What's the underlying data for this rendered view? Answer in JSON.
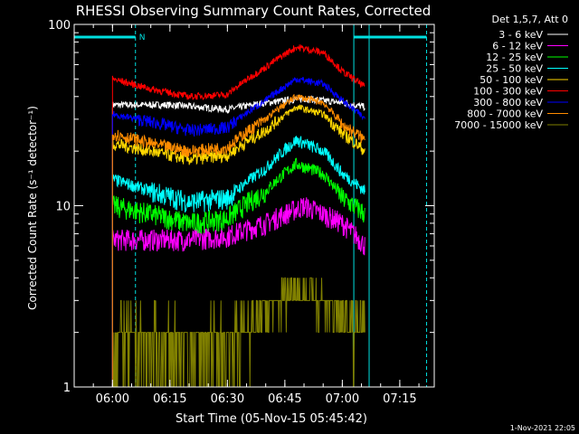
{
  "chart_data": {
    "type": "line",
    "title": "RHESSI Observing Summary Count Rates, Corrected",
    "xlabel": "Start Time (05-Nov-15 05:45:42)",
    "ylabel": "Corrected Count Rate (s⁻¹ detector⁻¹)",
    "x_start": "05:45:42",
    "xlim": [
      "05:50",
      "07:24"
    ],
    "xticks": [
      "06:00",
      "06:15",
      "06:30",
      "06:45",
      "07:00",
      "07:15"
    ],
    "yscale": "log",
    "ylim": [
      1,
      100
    ],
    "yticks": [
      "1",
      "10",
      "100"
    ],
    "legend_title": "Det 1,5,7, Att 0",
    "legend_position": "top-right",
    "timestamp": "1-Nov-2021 22:05",
    "data_interval": [
      "06:00",
      "07:06"
    ],
    "annotations": {
      "night_marker": "N",
      "bars": [
        {
          "from": "05:50",
          "to": "06:06",
          "y": 85,
          "color": "#00e0e0"
        },
        {
          "from": "07:03",
          "to": "07:22",
          "y": 85,
          "color": "#00e0e0"
        }
      ],
      "dashed_verticals": [
        "06:06",
        "07:22"
      ],
      "solid_verticals": [
        "07:03",
        "07:07"
      ]
    },
    "series": [
      {
        "name": "3 - 6 keV",
        "color": "#ffffff",
        "points": [
          [
            "06:00",
            36
          ],
          [
            "06:15",
            36
          ],
          [
            "06:30",
            34
          ],
          [
            "06:40",
            37
          ],
          [
            "06:50",
            39
          ],
          [
            "07:00",
            37
          ],
          [
            "07:06",
            35
          ]
        ]
      },
      {
        "name": "6 - 12 keV",
        "color": "#ff00ff",
        "points": [
          [
            "06:00",
            6.5
          ],
          [
            "06:10",
            6.5
          ],
          [
            "06:20",
            6.5
          ],
          [
            "06:30",
            6.8
          ],
          [
            "06:40",
            8
          ],
          [
            "06:50",
            10
          ],
          [
            "07:00",
            8
          ],
          [
            "07:06",
            6
          ]
        ]
      },
      {
        "name": "12 - 25 keV",
        "color": "#00ff00",
        "points": [
          [
            "06:00",
            10
          ],
          [
            "06:10",
            9
          ],
          [
            "06:20",
            8
          ],
          [
            "06:30",
            8.5
          ],
          [
            "06:40",
            12
          ],
          [
            "06:48",
            17
          ],
          [
            "06:55",
            15
          ],
          [
            "07:00",
            11
          ],
          [
            "07:06",
            9
          ]
        ]
      },
      {
        "name": "25 - 50 keV",
        "color": "#00ffff",
        "points": [
          [
            "06:00",
            14
          ],
          [
            "06:10",
            12
          ],
          [
            "06:20",
            10.5
          ],
          [
            "06:30",
            11
          ],
          [
            "06:40",
            16
          ],
          [
            "06:48",
            23
          ],
          [
            "06:55",
            20
          ],
          [
            "07:00",
            15
          ],
          [
            "07:06",
            12
          ]
        ]
      },
      {
        "name": "50 - 100 keV",
        "color": "#ffd700",
        "points": [
          [
            "06:00",
            22
          ],
          [
            "06:10",
            20
          ],
          [
            "06:20",
            18
          ],
          [
            "06:30",
            19
          ],
          [
            "06:40",
            26
          ],
          [
            "06:48",
            35
          ],
          [
            "06:55",
            32
          ],
          [
            "07:00",
            25
          ],
          [
            "07:06",
            20
          ]
        ]
      },
      {
        "name": "100 - 300 keV",
        "color": "#ff0000",
        "points": [
          [
            "06:00",
            50
          ],
          [
            "06:10",
            44
          ],
          [
            "06:20",
            40
          ],
          [
            "06:30",
            41
          ],
          [
            "06:40",
            58
          ],
          [
            "06:48",
            75
          ],
          [
            "06:55",
            70
          ],
          [
            "07:00",
            55
          ],
          [
            "07:06",
            45
          ]
        ]
      },
      {
        "name": "300 - 800 keV",
        "color": "#0000ff",
        "points": [
          [
            "06:00",
            32
          ],
          [
            "06:10",
            29
          ],
          [
            "06:20",
            26
          ],
          [
            "06:30",
            27
          ],
          [
            "06:40",
            38
          ],
          [
            "06:48",
            50
          ],
          [
            "06:55",
            47
          ],
          [
            "07:00",
            38
          ],
          [
            "07:06",
            30
          ]
        ]
      },
      {
        "name": "800 - 7000 keV",
        "color": "#ff8c00",
        "points": [
          [
            "06:00",
            25
          ],
          [
            "06:10",
            22
          ],
          [
            "06:20",
            20
          ],
          [
            "06:30",
            21
          ],
          [
            "06:40",
            30
          ],
          [
            "06:48",
            40
          ],
          [
            "06:55",
            37
          ],
          [
            "07:00",
            28
          ],
          [
            "07:06",
            23
          ]
        ]
      },
      {
        "name": "7000 - 15000 keV",
        "color": "#808000",
        "points": [
          [
            "06:00",
            1.4
          ],
          [
            "06:10",
            1.3
          ],
          [
            "06:20",
            1.2
          ],
          [
            "06:30",
            1.3
          ],
          [
            "06:40",
            2.0
          ],
          [
            "06:48",
            3.0
          ],
          [
            "06:55",
            2.5
          ],
          [
            "07:00",
            1.8
          ],
          [
            "07:06",
            1.4
          ]
        ]
      }
    ]
  }
}
